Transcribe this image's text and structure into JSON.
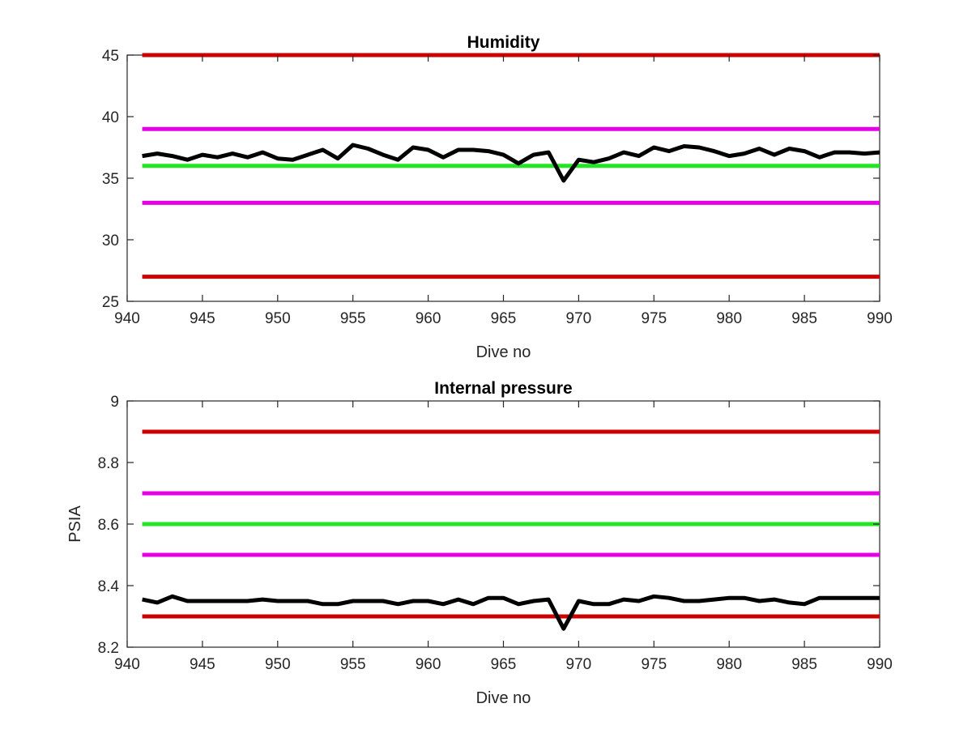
{
  "chart_data": [
    {
      "type": "line",
      "title": "Humidity",
      "xlabel": "Dive no",
      "ylabel": "",
      "xlim": [
        940,
        990
      ],
      "ylim": [
        25,
        45
      ],
      "xticks": [
        "940",
        "945",
        "950",
        "955",
        "960",
        "965",
        "970",
        "975",
        "980",
        "985",
        "990"
      ],
      "yticks": [
        "25",
        "30",
        "35",
        "40",
        "45"
      ],
      "grid": false,
      "reference_lines": [
        {
          "y": 45,
          "color": "#cc0000",
          "x_range": [
            941,
            990
          ]
        },
        {
          "y": 39,
          "color": "#e600e6",
          "x_range": [
            941,
            990
          ]
        },
        {
          "y": 36,
          "color": "#22e622",
          "x_range": [
            941,
            990
          ]
        },
        {
          "y": 33,
          "color": "#e600e6",
          "x_range": [
            941,
            990
          ]
        },
        {
          "y": 27,
          "color": "#cc0000",
          "x_range": [
            941,
            990
          ]
        }
      ],
      "series": [
        {
          "color": "#000000",
          "x": [
            941,
            942,
            943,
            944,
            945,
            946,
            947,
            948,
            949,
            950,
            951,
            952,
            953,
            954,
            955,
            956,
            957,
            958,
            959,
            960,
            961,
            962,
            963,
            964,
            965,
            966,
            967,
            968,
            969,
            970,
            971,
            972,
            973,
            974,
            975,
            976,
            977,
            978,
            979,
            980,
            981,
            982,
            983,
            984,
            985,
            986,
            987,
            988,
            989,
            990
          ],
          "y": [
            36.8,
            37.0,
            36.8,
            36.5,
            36.9,
            36.7,
            37.0,
            36.7,
            37.1,
            36.6,
            36.5,
            36.9,
            37.3,
            36.6,
            37.7,
            37.4,
            36.9,
            36.5,
            37.5,
            37.3,
            36.7,
            37.3,
            37.3,
            37.2,
            36.9,
            36.2,
            36.9,
            37.1,
            34.8,
            36.5,
            36.3,
            36.6,
            37.1,
            36.8,
            37.5,
            37.2,
            37.6,
            37.5,
            37.2,
            36.8,
            37.0,
            37.4,
            36.9,
            37.4,
            37.2,
            36.7,
            37.1,
            37.1,
            37.0,
            37.1
          ]
        }
      ]
    },
    {
      "type": "line",
      "title": "Internal pressure",
      "xlabel": "Dive no",
      "ylabel": "PSIA",
      "xlim": [
        940,
        990
      ],
      "ylim": [
        8.2,
        9.0
      ],
      "xticks": [
        "940",
        "945",
        "950",
        "955",
        "960",
        "965",
        "970",
        "975",
        "980",
        "985",
        "990"
      ],
      "yticks": [
        "8.2",
        "8.4",
        "8.6",
        "8.8",
        "9"
      ],
      "grid": false,
      "reference_lines": [
        {
          "y": 8.9,
          "color": "#cc0000",
          "x_range": [
            941,
            990
          ]
        },
        {
          "y": 8.7,
          "color": "#e600e6",
          "x_range": [
            941,
            990
          ]
        },
        {
          "y": 8.6,
          "color": "#22e622",
          "x_range": [
            941,
            990
          ]
        },
        {
          "y": 8.5,
          "color": "#e600e6",
          "x_range": [
            941,
            990
          ]
        },
        {
          "y": 8.3,
          "color": "#cc0000",
          "x_range": [
            941,
            990
          ]
        }
      ],
      "series": [
        {
          "color": "#000000",
          "x": [
            941,
            942,
            943,
            944,
            945,
            946,
            947,
            948,
            949,
            950,
            951,
            952,
            953,
            954,
            955,
            956,
            957,
            958,
            959,
            960,
            961,
            962,
            963,
            964,
            965,
            966,
            967,
            968,
            969,
            970,
            971,
            972,
            973,
            974,
            975,
            976,
            977,
            978,
            979,
            980,
            981,
            982,
            983,
            984,
            985,
            986,
            987,
            988,
            989,
            990
          ],
          "y": [
            8.355,
            8.345,
            8.365,
            8.35,
            8.35,
            8.35,
            8.35,
            8.35,
            8.355,
            8.35,
            8.35,
            8.35,
            8.34,
            8.34,
            8.35,
            8.35,
            8.35,
            8.34,
            8.35,
            8.35,
            8.34,
            8.355,
            8.34,
            8.36,
            8.36,
            8.34,
            8.35,
            8.355,
            8.26,
            8.35,
            8.34,
            8.34,
            8.355,
            8.35,
            8.365,
            8.36,
            8.35,
            8.35,
            8.355,
            8.36,
            8.36,
            8.35,
            8.355,
            8.345,
            8.34,
            8.36,
            8.36,
            8.36,
            8.36,
            8.36
          ]
        }
      ]
    }
  ]
}
